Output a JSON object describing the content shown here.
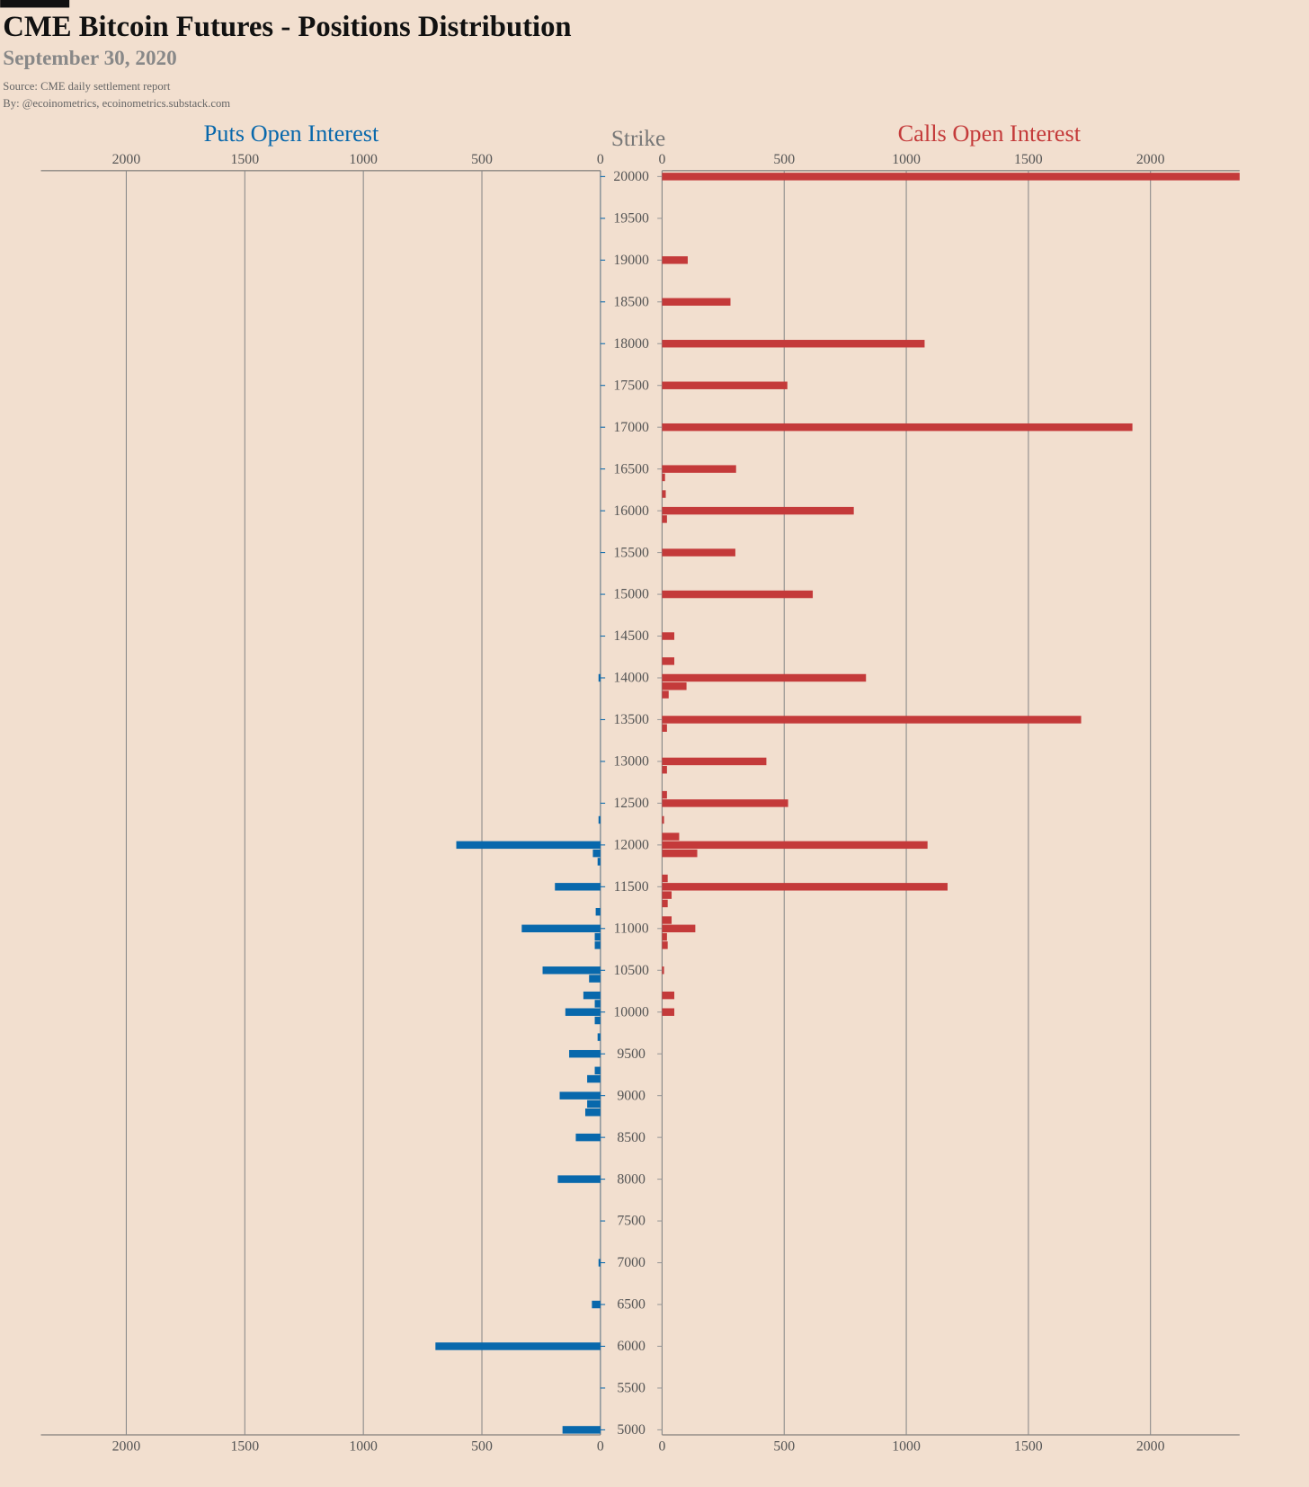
{
  "chart_data": {
    "type": "bar",
    "orientation": "horizontal",
    "title": "CME Bitcoin Futures - Positions Distribution",
    "subtitle": "September 30, 2020",
    "source": "Source: CME daily settlement report",
    "byline": "By: @ecoinometrics, ecoinometrics.substack.com",
    "y_label": "Strike",
    "ylim": [
      4940,
      20070
    ],
    "yticks": [
      20000,
      19500,
      19000,
      18500,
      18000,
      17500,
      17000,
      16500,
      16000,
      15500,
      15000,
      14500,
      14000,
      13500,
      13000,
      12500,
      12000,
      11500,
      11000,
      10500,
      10000,
      9500,
      9000,
      8500,
      8000,
      7500,
      7000,
      6500,
      6000,
      5500,
      5000
    ],
    "xlim": [
      0,
      2365
    ],
    "xticks": [
      0,
      500,
      1000,
      1500,
      2000
    ],
    "x2lim": [
      0,
      2360
    ],
    "x2ticks": [
      0,
      500,
      1000,
      1500,
      2000
    ],
    "grid": true,
    "series": [
      {
        "name": "Puts Open Interest",
        "color": "#0868ac",
        "axis": "x2",
        "strikes": [
          14000,
          12300,
          12000,
          11900,
          11800,
          11500,
          11200,
          11000,
          10900,
          10800,
          10500,
          10400,
          10200,
          10100,
          10000,
          9900,
          9700,
          9500,
          9300,
          9200,
          9000,
          8900,
          8800,
          8500,
          8000,
          7000,
          6500,
          6000,
          5000
        ],
        "values": [
          8,
          8,
          608,
          32,
          12,
          192,
          20,
          332,
          24,
          24,
          244,
          48,
          72,
          24,
          148,
          24,
          12,
          132,
          24,
          56,
          172,
          56,
          64,
          104,
          180,
          8,
          36,
          696,
          160
        ]
      },
      {
        "name": "Calls Open Interest",
        "color": "#c43a3a",
        "axis": "x",
        "strikes": [
          20000,
          19000,
          18500,
          18000,
          17500,
          17000,
          16500,
          16400,
          16200,
          16000,
          15900,
          15500,
          15000,
          14500,
          14200,
          14000,
          13900,
          13800,
          13500,
          13400,
          13000,
          12900,
          12600,
          12500,
          12300,
          12100,
          12000,
          11900,
          11600,
          11500,
          11400,
          11300,
          11100,
          11000,
          10900,
          10800,
          10500,
          10200,
          10000
        ],
        "values": [
          2365,
          105,
          280,
          1075,
          513,
          1926,
          303,
          12,
          15,
          785,
          20,
          300,
          617,
          50,
          50,
          835,
          100,
          27,
          1716,
          20,
          427,
          20,
          20,
          516,
          8,
          70,
          1087,
          144,
          23,
          1169,
          39,
          23,
          39,
          136,
          20,
          23,
          8,
          50,
          50
        ]
      }
    ]
  }
}
